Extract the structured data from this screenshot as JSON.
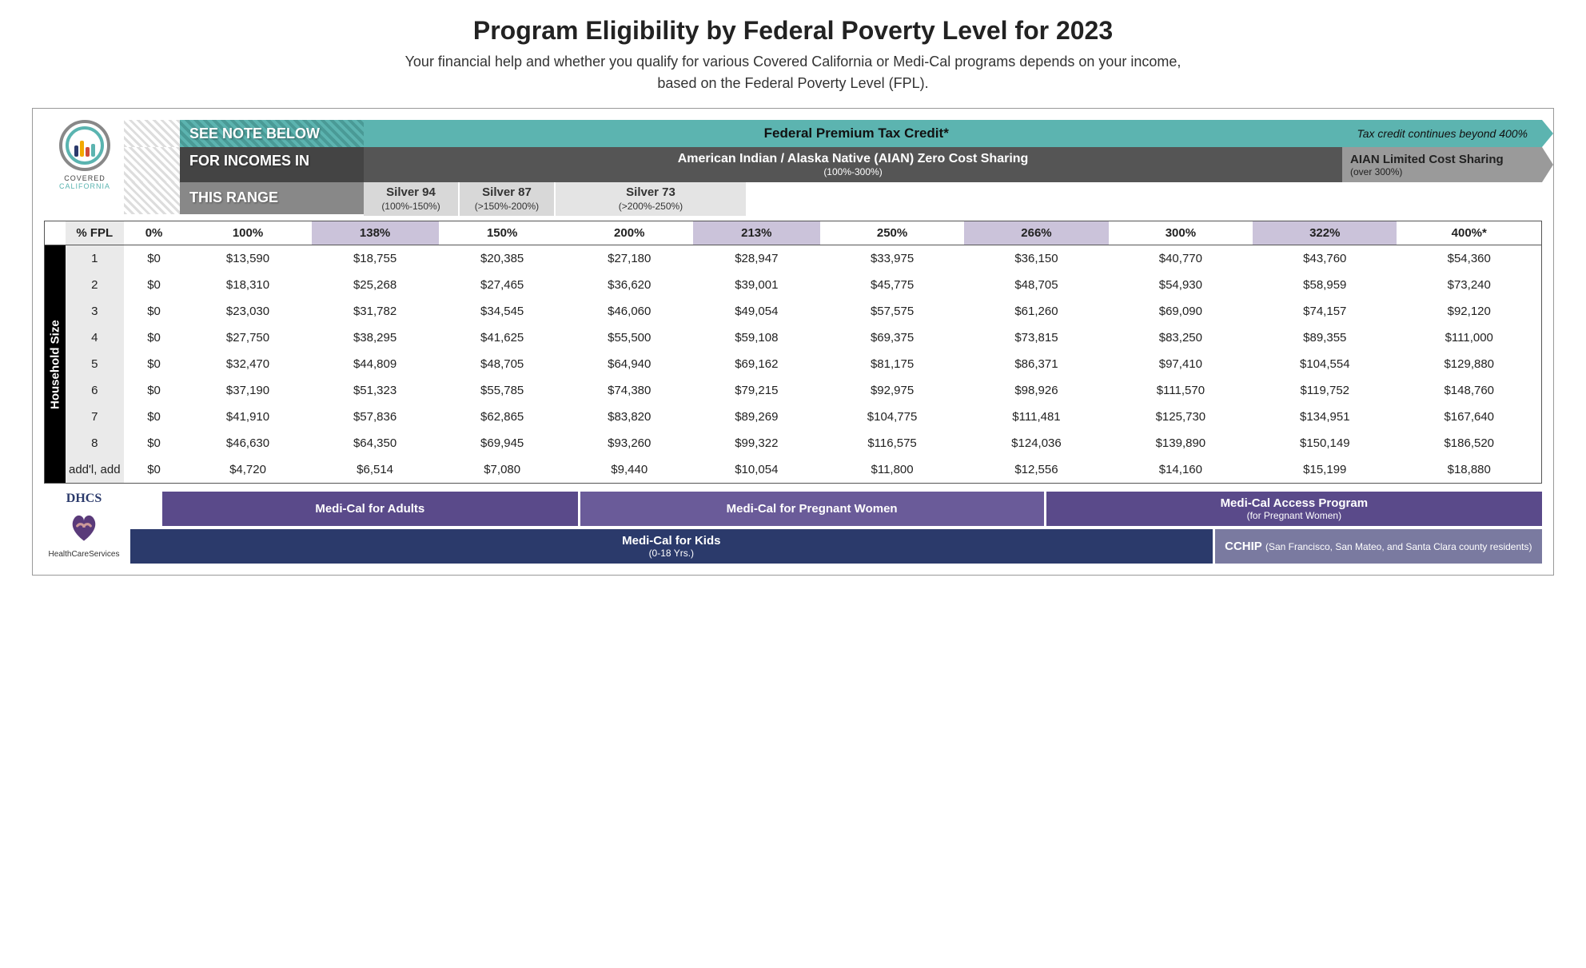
{
  "title": "Program Eligibility by Federal Poverty Level for 2023",
  "subtitle_line1": "Your financial help and whether you qualify for various Covered California or Medi-Cal programs depends on your income,",
  "subtitle_line2": "based on the Federal Poverty Level (FPL).",
  "logo": {
    "brand": "COVERED",
    "state": "CALIFORNIA"
  },
  "colors": {
    "teal": "#5cb4b0",
    "dark_gray": "#555555",
    "light_gray_band": "#9a9a9a",
    "header_highlight": "#cbc3da",
    "purple_med": "#5a4a8a",
    "purple_light": "#6a5b99",
    "navy": "#2b3a6b",
    "slate": "#7a7aa0"
  },
  "note_block": {
    "l1": "SEE NOTE BELOW",
    "l2": "FOR INCOMES IN",
    "l3": "THIS RANGE"
  },
  "bands": {
    "federal": "Federal Premium Tax Credit*",
    "federal_tail": "Tax credit continues beyond 400%",
    "aian": "American Indian / Alaska Native (AIAN) Zero Cost Sharing",
    "aian_sub": "(100%-300%)",
    "aian_tail": "AIAN Limited Cost Sharing",
    "aian_tail_sub": "(over 300%)",
    "silver94": "Silver 94",
    "silver94_sub": "(100%-150%)",
    "silver87": "Silver 87",
    "silver87_sub": "(>150%-200%)",
    "silver73": "Silver 73",
    "silver73_sub": "(>200%-250%)"
  },
  "table": {
    "header_label": "% FPL",
    "side_label": "Household Size",
    "columns": [
      "0%",
      "100%",
      "138%",
      "150%",
      "200%",
      "213%",
      "250%",
      "266%",
      "300%",
      "322%",
      "400%*"
    ],
    "highlight_cols": [
      2,
      5,
      7,
      9
    ],
    "row_headers": [
      "1",
      "2",
      "3",
      "4",
      "5",
      "6",
      "7",
      "8",
      "add'l, add"
    ],
    "rows": [
      [
        "$0",
        "$13,590",
        "$18,755",
        "$20,385",
        "$27,180",
        "$28,947",
        "$33,975",
        "$36,150",
        "$40,770",
        "$43,760",
        "$54,360"
      ],
      [
        "$0",
        "$18,310",
        "$25,268",
        "$27,465",
        "$36,620",
        "$39,001",
        "$45,775",
        "$48,705",
        "$54,930",
        "$58,959",
        "$73,240"
      ],
      [
        "$0",
        "$23,030",
        "$31,782",
        "$34,545",
        "$46,060",
        "$49,054",
        "$57,575",
        "$61,260",
        "$69,090",
        "$74,157",
        "$92,120"
      ],
      [
        "$0",
        "$27,750",
        "$38,295",
        "$41,625",
        "$55,500",
        "$59,108",
        "$69,375",
        "$73,815",
        "$83,250",
        "$89,355",
        "$111,000"
      ],
      [
        "$0",
        "$32,470",
        "$44,809",
        "$48,705",
        "$64,940",
        "$69,162",
        "$81,175",
        "$86,371",
        "$97,410",
        "$104,554",
        "$129,880"
      ],
      [
        "$0",
        "$37,190",
        "$51,323",
        "$55,785",
        "$74,380",
        "$79,215",
        "$92,975",
        "$98,926",
        "$111,570",
        "$119,752",
        "$148,760"
      ],
      [
        "$0",
        "$41,910",
        "$57,836",
        "$62,865",
        "$83,820",
        "$89,269",
        "$104,775",
        "$111,481",
        "$125,730",
        "$134,951",
        "$167,640"
      ],
      [
        "$0",
        "$46,630",
        "$64,350",
        "$69,945",
        "$93,260",
        "$99,322",
        "$116,575",
        "$124,036",
        "$139,890",
        "$150,149",
        "$186,520"
      ],
      [
        "$0",
        "$4,720",
        "$6,514",
        "$7,080",
        "$9,440",
        "$10,054",
        "$11,800",
        "$12,556",
        "$14,160",
        "$15,199",
        "$18,880"
      ]
    ]
  },
  "footer": {
    "dhcs_top": "DHCS",
    "dhcs_bottom": "HealthCareServices",
    "row1": [
      {
        "label": "Medi-Cal for Adults",
        "color": "#5a4a8a",
        "flex": 25
      },
      {
        "label": "Medi-Cal for Pregnant Women",
        "color": "#6a5b99",
        "flex": 28
      },
      {
        "label": "Medi-Cal Access Program",
        "sub": "(for Pregnant Women)",
        "color": "#5a4a8a",
        "flex": 30
      }
    ],
    "row2": [
      {
        "label": "Medi-Cal for Kids",
        "sub": "(0-18 Yrs.)",
        "color": "#2b3a6b",
        "flex": 68
      },
      {
        "label": "CCHIP",
        "sub": "(San Francisco, San Mateo, and Santa Clara county residents)",
        "color": "#7a7aa0",
        "flex": 20,
        "inline": true
      }
    ]
  }
}
